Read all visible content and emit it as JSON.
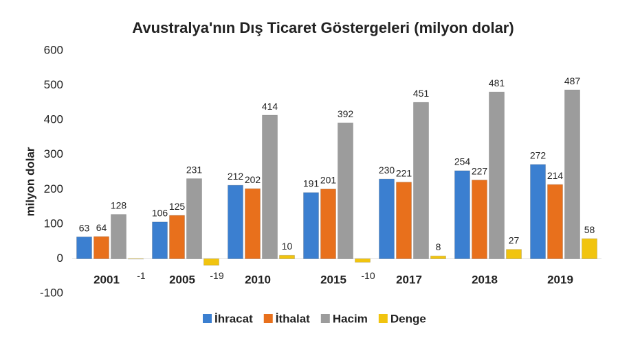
{
  "chart_data": {
    "type": "bar",
    "title": "Avustralya'nın Dış Ticaret Göstergeleri (milyon dolar)",
    "y_label": "milyon dolar",
    "categories": [
      "2001",
      "2005",
      "2010",
      "2015",
      "2017",
      "2018",
      "2019"
    ],
    "series": [
      {
        "name": "İhracat",
        "color": "#3b7fd0",
        "values": [
          63,
          106,
          212,
          191,
          230,
          254,
          272
        ]
      },
      {
        "name": "İthalat",
        "color": "#e8701c",
        "values": [
          64,
          125,
          202,
          201,
          221,
          227,
          214
        ]
      },
      {
        "name": "Hacim",
        "color": "#9c9c9c",
        "values": [
          128,
          231,
          414,
          392,
          451,
          481,
          487
        ]
      },
      {
        "name": "Denge",
        "color": "#f1c40f",
        "values": [
          -1,
          -19,
          10,
          -10,
          8,
          27,
          58
        ]
      }
    ],
    "ylim": [
      -100,
      600
    ],
    "yticks": [
      -100,
      0,
      100,
      200,
      300,
      400,
      500,
      600
    ],
    "grid": false,
    "legend": "bottom"
  }
}
